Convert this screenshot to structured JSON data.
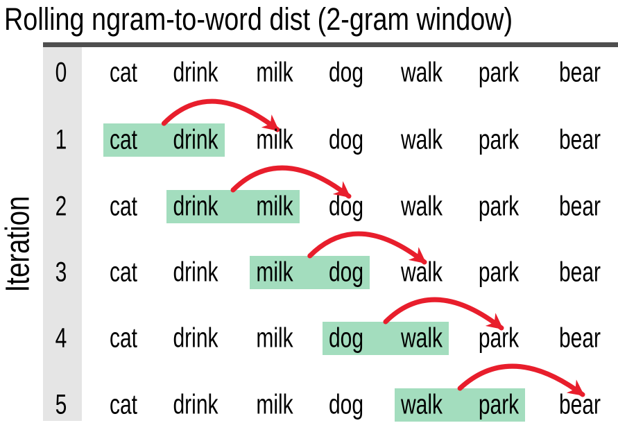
{
  "title": "Rolling ngram-to-word dist (2-gram window)",
  "y_axis_label": "Iteration",
  "words": [
    "cat",
    "drink",
    "milk",
    "dog",
    "walk",
    "park",
    "bear"
  ],
  "iterations": [
    {
      "label": "0",
      "window": null,
      "window_words": null,
      "arrow_to": null,
      "next_word": null
    },
    {
      "label": "1",
      "window": [
        0,
        1
      ],
      "window_words": [
        "cat",
        "drink"
      ],
      "arrow_to": 2,
      "next_word": "milk"
    },
    {
      "label": "2",
      "window": [
        1,
        2
      ],
      "window_words": [
        "drink",
        "milk"
      ],
      "arrow_to": 3,
      "next_word": "dog"
    },
    {
      "label": "3",
      "window": [
        2,
        3
      ],
      "window_words": [
        "milk",
        "dog"
      ],
      "arrow_to": 4,
      "next_word": "walk"
    },
    {
      "label": "4",
      "window": [
        3,
        4
      ],
      "window_words": [
        "dog",
        "walk"
      ],
      "arrow_to": 5,
      "next_word": "park"
    },
    {
      "label": "5",
      "window": [
        4,
        5
      ],
      "window_words": [
        "walk",
        "park"
      ],
      "arrow_to": 6,
      "next_word": "bear"
    }
  ],
  "colors": {
    "highlight_green": "#a3ddbe",
    "arrow_red": "#e81e2c",
    "axis_bar_gray": "#4f4f4f",
    "strip_gray": "#e5e5e5",
    "text_black": "#000000"
  }
}
